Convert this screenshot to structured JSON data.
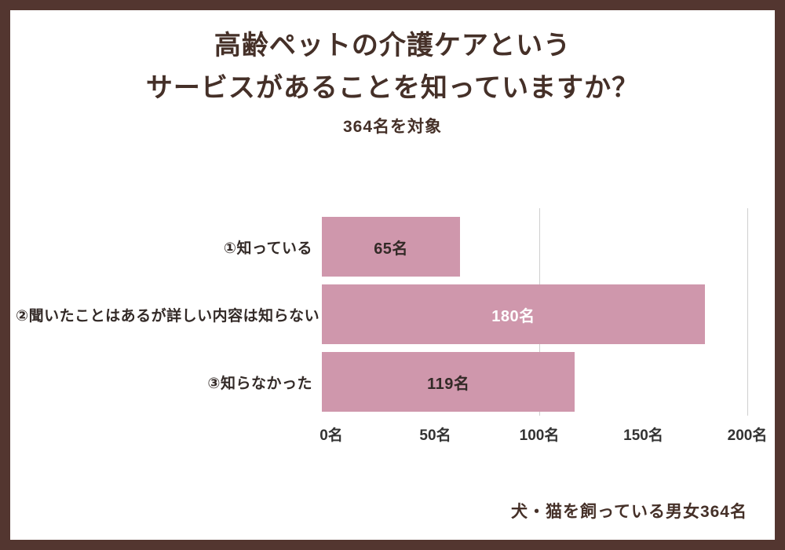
{
  "page": {
    "border_color": "#533630",
    "background": "#ffffff"
  },
  "header": {
    "title_line1": "高齢ペットの介護ケアという",
    "title_line2": "サービスがあることを知っていますか？",
    "subtitle": "364名を対象",
    "title_color": "#453028"
  },
  "footer": {
    "note": "犬・猫を飼っている男女364名"
  },
  "chart_data": {
    "type": "bar",
    "orientation": "horizontal",
    "title": "高齢ペットの介護ケアというサービスがあることを知っていますか？",
    "subtitle": "364名を対象",
    "categories": [
      "①知っている",
      "②聞いたことはあるが詳しい内容は知らない",
      "③知らなかった"
    ],
    "values": [
      65,
      180,
      119
    ],
    "value_labels": [
      "65名",
      "180名",
      "119名"
    ],
    "value_label_colors": [
      "#332a27",
      "#ffffff",
      "#332a27"
    ],
    "bar_color": "#cf97ac",
    "xlabel": "",
    "ylabel": "",
    "xlim": [
      0,
      200
    ],
    "x_ticks": [
      "0名",
      "50名",
      "100名",
      "150名",
      "200名"
    ],
    "x_tick_values": [
      0,
      50,
      100,
      150,
      200
    ],
    "gridlines_at": [
      100,
      200
    ],
    "legend": "none",
    "annotation": "犬・猫を飼っている男女364名"
  }
}
